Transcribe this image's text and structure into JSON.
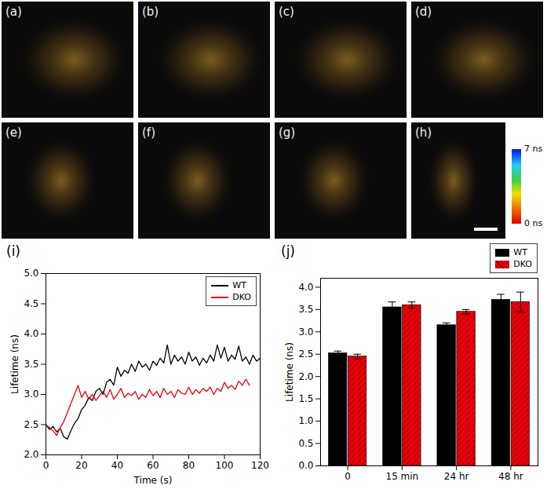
{
  "image_panels": {
    "labels": [
      "(a)",
      "(b)",
      "(c)",
      "(d)",
      "(e)",
      "(f)",
      "(g)",
      "(h)"
    ],
    "colorbar": {
      "range": [
        0,
        7
      ],
      "ticks": [
        {
          "value": 7,
          "label": "7 ns"
        },
        {
          "value": 0,
          "label": "0 ns"
        }
      ]
    }
  },
  "chart_data": [
    {
      "type": "line",
      "title": "(i)",
      "x_label": "Time (s)",
      "y_label": "Lifetime (ns)",
      "x": [
        0,
        2,
        4,
        6,
        8,
        10,
        12,
        14,
        16,
        18,
        20,
        22,
        24,
        26,
        28,
        30,
        32,
        34,
        36,
        38,
        40,
        42,
        44,
        46,
        48,
        50,
        52,
        54,
        56,
        58,
        60,
        62,
        64,
        66,
        68,
        70,
        72,
        74,
        76,
        78,
        80,
        82,
        84,
        86,
        88,
        90,
        92,
        94,
        96,
        98,
        100,
        102,
        104,
        106,
        108,
        110,
        112,
        114,
        116,
        118,
        120
      ],
      "xlim": [
        0,
        120
      ],
      "xticks": [
        0,
        20,
        40,
        60,
        80,
        100,
        120
      ],
      "ylim": [
        2,
        5
      ],
      "yticks": [
        {
          "value": 2,
          "label": "2.0"
        },
        {
          "value": 2.5,
          "label": "2.5"
        },
        {
          "value": 3,
          "label": "3.0"
        },
        {
          "value": 3.5,
          "label": "3.5"
        },
        {
          "value": 4,
          "label": "4.0"
        },
        {
          "value": 4.5,
          "label": "4.5"
        },
        {
          "value": 5,
          "label": "5.0"
        }
      ],
      "legend": "top-right",
      "series": [
        {
          "name": "WT",
          "color": "#000000",
          "values": [
            2.5,
            2.42,
            2.47,
            2.38,
            2.44,
            2.3,
            2.26,
            2.4,
            2.52,
            2.6,
            2.75,
            2.82,
            2.95,
            2.9,
            3.05,
            3.1,
            3.0,
            3.2,
            3.25,
            3.15,
            3.45,
            3.3,
            3.4,
            3.35,
            3.5,
            3.38,
            3.55,
            3.45,
            3.5,
            3.4,
            3.55,
            3.48,
            3.6,
            3.52,
            3.82,
            3.5,
            3.65,
            3.55,
            3.62,
            3.5,
            3.7,
            3.55,
            3.62,
            3.48,
            3.6,
            3.52,
            3.65,
            3.55,
            3.82,
            3.6,
            3.78,
            3.55,
            3.65,
            3.58,
            3.8,
            3.55,
            3.62,
            3.5,
            3.65,
            3.55,
            3.6
          ]
        },
        {
          "name": "DKO",
          "color": "#e8000b",
          "values": [
            2.5,
            2.45,
            2.4,
            2.32,
            2.45,
            2.55,
            2.7,
            2.85,
            3.0,
            3.15,
            2.95,
            3.05,
            2.92,
            3.0,
            2.9,
            2.98,
            3.05,
            2.95,
            3.08,
            2.92,
            3.0,
            3.1,
            2.95,
            3.02,
            2.98,
            3.05,
            2.92,
            3.0,
            2.95,
            3.08,
            2.98,
            3.05,
            2.95,
            3.1,
            3.0,
            3.05,
            2.95,
            3.08,
            3.02,
            3.0,
            3.12,
            3.0,
            3.08,
            3.02,
            3.1,
            3.05,
            3.12,
            3.0,
            3.1,
            3.05,
            3.2,
            3.1,
            3.15,
            3.08,
            3.22,
            3.15,
            3.25,
            3.15,
            null,
            null,
            null
          ]
        }
      ]
    },
    {
      "type": "bar",
      "title": "(j)",
      "y_label": "Lifetime (ns)",
      "categories": [
        "0",
        "15 min",
        "24 hr",
        "48 hr"
      ],
      "ylim": [
        0,
        4.2
      ],
      "yticks": [
        {
          "value": 0,
          "label": "0.0"
        },
        {
          "value": 0.5,
          "label": "0.5"
        },
        {
          "value": 1,
          "label": "1.0"
        },
        {
          "value": 1.5,
          "label": "1.5"
        },
        {
          "value": 2,
          "label": "2.0"
        },
        {
          "value": 2.5,
          "label": "2.5"
        },
        {
          "value": 3,
          "label": "3.0"
        },
        {
          "value": 3.5,
          "label": "3.5"
        },
        {
          "value": 4,
          "label": "4.0"
        }
      ],
      "legend": "top-right",
      "series": [
        {
          "name": "WT",
          "color": "#000000",
          "values": [
            2.52,
            3.55,
            3.15,
            3.72
          ],
          "errors": [
            0.05,
            0.12,
            0.05,
            0.12
          ]
        },
        {
          "name": "DKO",
          "color": "#e8000b",
          "values": [
            2.45,
            3.6,
            3.45,
            3.67
          ],
          "errors": [
            0.05,
            0.07,
            0.05,
            0.22
          ]
        }
      ]
    }
  ]
}
